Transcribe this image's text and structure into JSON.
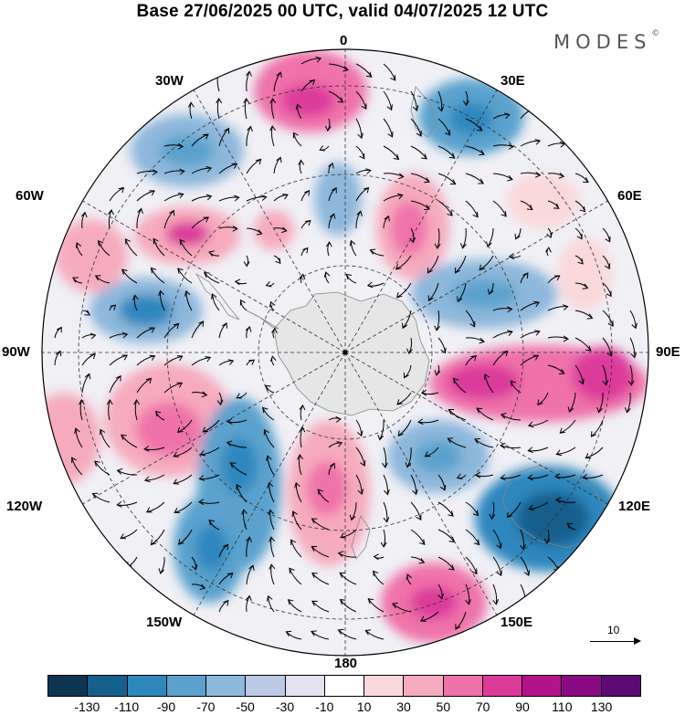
{
  "title": "Base 27/06/2025 00 UTC, valid 04/07/2025 12 UTC",
  "brand": {
    "name": "MODES",
    "mark": "©"
  },
  "longitude_labels": {
    "lon_0": "0",
    "lon_30e": "30E",
    "lon_60e": "60E",
    "lon_90e": "90E",
    "lon_120e": "120E",
    "lon_150e": "150E",
    "lon_180": "180",
    "lon_150w": "150W",
    "lon_120w": "120W",
    "lon_90w": "90W",
    "lon_60w": "60W",
    "lon_30w": "30W"
  },
  "reference_vector": {
    "label": "10"
  },
  "colorbar": {
    "colors": [
      "#0d3552",
      "#155f8d",
      "#2e87bd",
      "#5aa2cd",
      "#8db7db",
      "#bcc9e5",
      "#e2e3ef",
      "#ffffff",
      "#fbd8da",
      "#f6aabe",
      "#ef72aa",
      "#dc3b9a",
      "#b3138a",
      "#8a0a85",
      "#5b0a74"
    ],
    "tick_labels": [
      "-130",
      "-110",
      "-90",
      "-70",
      "-50",
      "-30",
      "-10",
      "10",
      "30",
      "50",
      "70",
      "90",
      "110",
      "130"
    ]
  }
}
